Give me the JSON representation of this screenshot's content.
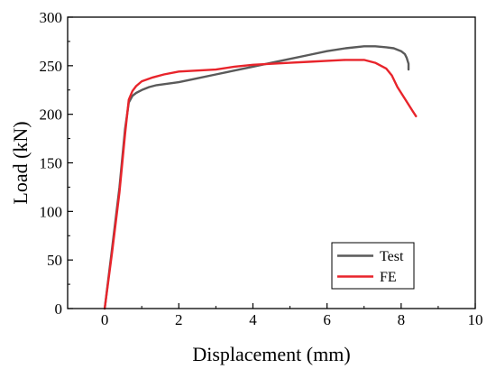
{
  "chart_data": {
    "type": "line",
    "xlabel": "Displacement (mm)",
    "ylabel": "Load (kN)",
    "xlim": [
      -1,
      10
    ],
    "ylim": [
      0,
      300
    ],
    "x_ticks": [
      "0",
      "2",
      "4",
      "6",
      "8",
      "10"
    ],
    "y_ticks": [
      "0",
      "50",
      "100",
      "150",
      "200",
      "250",
      "300"
    ],
    "grid": false,
    "legend_position": "bottom-right",
    "series": [
      {
        "name": "Test",
        "color": "#5a5a5a",
        "x": [
          0,
          0.2,
          0.4,
          0.55,
          0.65,
          0.75,
          0.85,
          1.0,
          1.2,
          1.4,
          1.6,
          1.8,
          2.0,
          2.5,
          3.0,
          3.5,
          4.0,
          4.5,
          5.0,
          5.5,
          6.0,
          6.5,
          7.0,
          7.3,
          7.6,
          7.8,
          8.0,
          8.1,
          8.15,
          8.2,
          8.2
        ],
        "y": [
          0,
          62,
          125,
          185,
          212,
          219,
          222,
          225,
          228,
          230,
          231,
          232,
          233,
          237,
          241,
          245,
          249,
          253,
          257,
          261,
          265,
          268,
          270,
          270,
          269,
          268,
          265,
          262,
          258,
          252,
          246
        ]
      },
      {
        "name": "FE",
        "color": "#e8242b",
        "x": [
          0,
          0.2,
          0.4,
          0.55,
          0.65,
          0.75,
          0.85,
          1.0,
          1.3,
          1.6,
          2.0,
          2.5,
          3.0,
          3.5,
          4.0,
          4.5,
          5.0,
          5.5,
          6.0,
          6.5,
          7.0,
          7.3,
          7.6,
          7.75,
          7.9,
          8.1,
          8.3,
          8.4
        ],
        "y": [
          0,
          58,
          120,
          180,
          215,
          224,
          229,
          234,
          238,
          241,
          244,
          245,
          246,
          249,
          251,
          252,
          253,
          254,
          255,
          256,
          256,
          253,
          247,
          240,
          228,
          216,
          204,
          198
        ]
      }
    ]
  }
}
